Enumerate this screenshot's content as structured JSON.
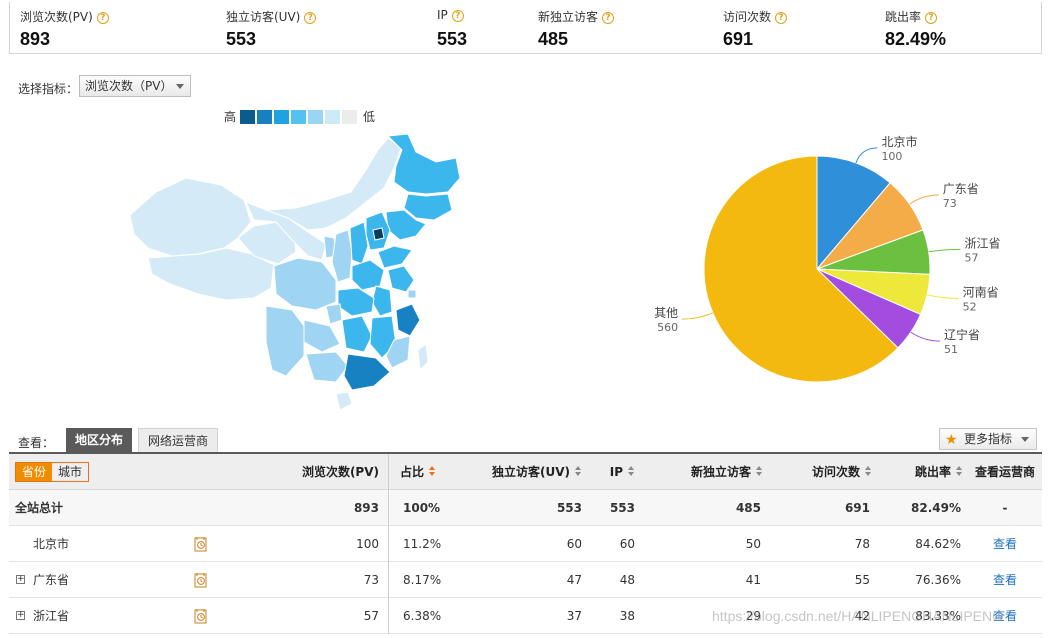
{
  "summary": [
    {
      "label": "浏览次数(PV)",
      "value": "893"
    },
    {
      "label": "独立访客(UV)",
      "value": "553"
    },
    {
      "label": "IP",
      "value": "553"
    },
    {
      "label": "新独立访客",
      "value": "485"
    },
    {
      "label": "访问次数",
      "value": "691"
    },
    {
      "label": "跳出率",
      "value": "82.49%"
    }
  ],
  "help_glyph": "?",
  "selector": {
    "label": "选择指标：",
    "value": "浏览次数（PV）"
  },
  "scale": {
    "high": "高",
    "low": "低",
    "colors": [
      "#0b5c8c",
      "#1a80bd",
      "#1fa3e0",
      "#55c1ef",
      "#9ad6f3",
      "#cdeaf8",
      "#ececec"
    ]
  },
  "map": {
    "colors": {
      "darkest": "#073f63",
      "dark": "#1782c2",
      "mid": "#3bb7ee",
      "light": "#9fd5f2",
      "lighter": "#d4ebf7",
      "border": "#ffffff"
    }
  },
  "chart_data": {
    "type": "pie",
    "slices": [
      {
        "label": "北京市",
        "value": 100,
        "color": "#2f8fd8"
      },
      {
        "label": "广东省",
        "value": 73,
        "color": "#f3ac47"
      },
      {
        "label": "浙江省",
        "value": 57,
        "color": "#6cc040"
      },
      {
        "label": "河南省",
        "value": 52,
        "color": "#eee83a"
      },
      {
        "label": "辽宁省",
        "value": 51,
        "color": "#a34de0"
      },
      {
        "label": "其他",
        "value": 560,
        "color": "#f4b90f"
      }
    ]
  },
  "view": {
    "label": "查看：",
    "tabs": [
      {
        "label": "地区分布",
        "active": true
      },
      {
        "label": "网络运营商",
        "active": false
      }
    ],
    "more_button": "更多指标"
  },
  "table": {
    "segment": [
      "省份",
      "城市"
    ],
    "headers": [
      "浏览次数(PV)",
      "占比",
      "独立访客(UV)",
      "IP",
      "新独立访客",
      "访问次数",
      "跳出率",
      "查看运营商"
    ],
    "rows": [
      {
        "name": "全站总计",
        "pv": "893",
        "share": "100%",
        "uv": "553",
        "ip": "553",
        "new_uv": "485",
        "visits": "691",
        "bounce": "82.49%",
        "op": "-",
        "expand": false,
        "trend": false,
        "total": true
      },
      {
        "name": "北京市",
        "pv": "100",
        "share": "11.2%",
        "uv": "60",
        "ip": "60",
        "new_uv": "50",
        "visits": "78",
        "bounce": "84.62%",
        "op": "查看",
        "expand": false,
        "trend": true
      },
      {
        "name": "广东省",
        "pv": "73",
        "share": "8.17%",
        "uv": "47",
        "ip": "48",
        "new_uv": "41",
        "visits": "55",
        "bounce": "76.36%",
        "op": "查看",
        "expand": true,
        "trend": true
      },
      {
        "name": "浙江省",
        "pv": "57",
        "share": "6.38%",
        "uv": "37",
        "ip": "38",
        "new_uv": "29",
        "visits": "42",
        "bounce": "83.33%",
        "op": "查看",
        "expand": true,
        "trend": true
      }
    ]
  },
  "watermark": "https://blog.csdn.net/HANLIPENGHANLIPENG"
}
